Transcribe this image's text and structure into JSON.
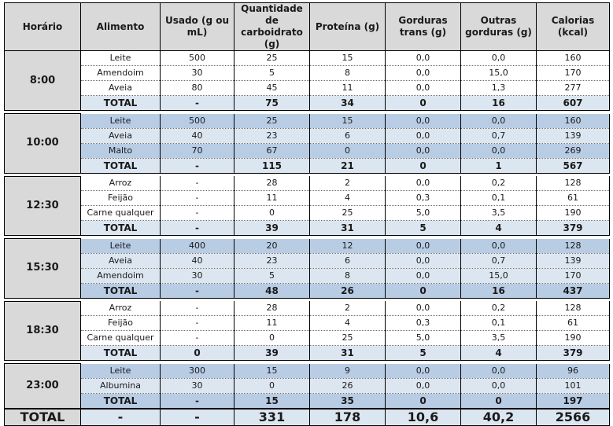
{
  "headers": [
    "Horário",
    "Alimento",
    "Usado (g ou mL)",
    "Quantidade de carboidrato (g)",
    "Proteína (g)",
    "Gorduras trans (g)",
    "Outras gorduras (g)",
    "Calorias (kcal)"
  ],
  "meals": [
    {
      "time": "8:00",
      "items": [
        [
          "Leite",
          "500",
          "25",
          "15",
          "0,0",
          "0,0",
          "160"
        ],
        [
          "Amendoim",
          "30",
          "5",
          "8",
          "0,0",
          "15,0",
          "170"
        ],
        [
          "Aveia",
          "80",
          "45",
          "11",
          "0,0",
          "1,3",
          "277"
        ]
      ],
      "total": [
        "TOTAL",
        "-",
        "75",
        "34",
        "0",
        "16",
        "607"
      ]
    },
    {
      "time": "10:00",
      "items": [
        [
          "Leite",
          "500",
          "25",
          "15",
          "0,0",
          "0,0",
          "160"
        ],
        [
          "Aveia",
          "40",
          "23",
          "6",
          "0,0",
          "0,7",
          "139"
        ],
        [
          "Malto",
          "70",
          "67",
          "0",
          "0,0",
          "0,0",
          "269"
        ]
      ],
      "total": [
        "TOTAL",
        "-",
        "115",
        "21",
        "0",
        "1",
        "567"
      ]
    },
    {
      "time": "12:30",
      "items": [
        [
          "Arroz",
          "-",
          "28",
          "2",
          "0,0",
          "0,2",
          "128"
        ],
        [
          "Feijão",
          "-",
          "11",
          "4",
          "0,3",
          "0,1",
          "61"
        ],
        [
          "Carne qualquer",
          "-",
          "0",
          "25",
          "5,0",
          "3,5",
          "190"
        ]
      ],
      "total": [
        "TOTAL",
        "-",
        "39",
        "31",
        "5",
        "4",
        "379"
      ]
    },
    {
      "time": "15:30",
      "items": [
        [
          "Leite",
          "400",
          "20",
          "12",
          "0,0",
          "0,0",
          "128"
        ],
        [
          "Aveia",
          "40",
          "23",
          "6",
          "0,0",
          "0,7",
          "139"
        ],
        [
          "Amendoim",
          "30",
          "5",
          "8",
          "0,0",
          "15,0",
          "170"
        ]
      ],
      "total": [
        "TOTAL",
        "-",
        "48",
        "26",
        "0",
        "16",
        "437"
      ]
    },
    {
      "time": "18:30",
      "items": [
        [
          "Arroz",
          "-",
          "28",
          "2",
          "0,0",
          "0,2",
          "128"
        ],
        [
          "Feijão",
          "-",
          "11",
          "4",
          "0,3",
          "0,1",
          "61"
        ],
        [
          "Carne qualquer",
          "-",
          "0",
          "25",
          "5,0",
          "3,5",
          "190"
        ]
      ],
      "total": [
        "TOTAL",
        "0",
        "39",
        "31",
        "5",
        "4",
        "379"
      ]
    },
    {
      "time": "23:00",
      "items": [
        [
          "Leite",
          "300",
          "15",
          "9",
          "0,0",
          "0,0",
          "96"
        ],
        [
          "Albumina",
          "30",
          "0",
          "26",
          "0,0",
          "0,0",
          "101"
        ]
      ],
      "total": [
        "TOTAL",
        "-",
        "15",
        "35",
        "0",
        "0",
        "197"
      ]
    }
  ],
  "grand_total": [
    "TOTAL",
    "-",
    "-",
    "331",
    "178",
    "10,6",
    "40,2",
    "2566"
  ],
  "colors": {
    "header_gray": "#d9d9d9",
    "row_blue": "#b8cce4",
    "row_light": "#dce6f1",
    "row_white": "#ffffff"
  }
}
